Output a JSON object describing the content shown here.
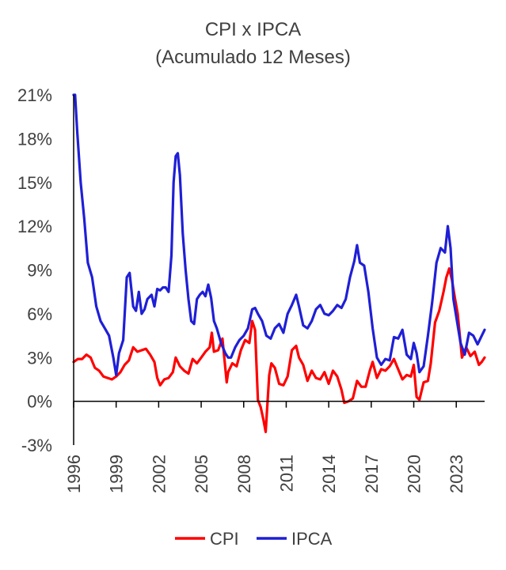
{
  "colors": {
    "cpi": "#ff0000",
    "ipca": "#1f1fd6",
    "axis": "#000000",
    "text": "#404040"
  },
  "chart_data": {
    "type": "line",
    "title": "CPI x IPCA",
    "subtitle": "(Acumulado 12 Meses)",
    "xlabel": "",
    "ylabel": "",
    "xlim": [
      1996,
      2025
    ],
    "ylim": [
      -3,
      21
    ],
    "y_ticks": [
      "-3%",
      "0%",
      "3%",
      "6%",
      "9%",
      "12%",
      "15%",
      "18%",
      "21%"
    ],
    "x_ticks": [
      "1996",
      "1999",
      "2002",
      "2005",
      "2008",
      "2011",
      "2014",
      "2017",
      "2020",
      "2023"
    ],
    "grid": false,
    "legend": "bottom",
    "series": [
      {
        "name": "CPI",
        "color": "#ff0000",
        "x": [
          1996.0,
          1996.3,
          1996.6,
          1996.9,
          1997.2,
          1997.5,
          1997.8,
          1998.1,
          1998.4,
          1998.7,
          1999.0,
          1999.3,
          1999.6,
          1999.9,
          2000.2,
          2000.5,
          2000.8,
          2001.1,
          2001.4,
          2001.7,
          2001.9,
          2002.1,
          2002.4,
          2002.7,
          2003.0,
          2003.2,
          2003.5,
          2003.8,
          2004.1,
          2004.4,
          2004.7,
          2005.0,
          2005.3,
          2005.6,
          2005.75,
          2005.9,
          2006.2,
          2006.5,
          2006.8,
          2006.9,
          2007.2,
          2007.5,
          2007.8,
          2008.1,
          2008.4,
          2008.6,
          2008.8,
          2009.0,
          2009.2,
          2009.4,
          2009.55,
          2009.8,
          2009.95,
          2010.2,
          2010.5,
          2010.8,
          2011.1,
          2011.4,
          2011.7,
          2011.9,
          2012.2,
          2012.5,
          2012.8,
          2013.1,
          2013.4,
          2013.7,
          2014.0,
          2014.3,
          2014.6,
          2014.9,
          2015.1,
          2015.4,
          2015.7,
          2016.0,
          2016.3,
          2016.6,
          2016.9,
          2017.1,
          2017.4,
          2017.7,
          2018.0,
          2018.3,
          2018.6,
          2018.9,
          2019.2,
          2019.5,
          2019.8,
          2020.0,
          2020.2,
          2020.4,
          2020.7,
          2021.0,
          2021.2,
          2021.5,
          2021.8,
          2022.1,
          2022.3,
          2022.5,
          2022.7,
          2022.9,
          2023.1,
          2023.4,
          2023.7,
          2024.0,
          2024.3,
          2024.6,
          2024.8,
          2025.0
        ],
        "values": [
          2.7,
          2.9,
          2.9,
          3.2,
          3.0,
          2.3,
          2.1,
          1.7,
          1.6,
          1.5,
          1.7,
          2.0,
          2.5,
          2.8,
          3.7,
          3.4,
          3.5,
          3.6,
          3.2,
          2.7,
          1.6,
          1.1,
          1.5,
          1.6,
          2.0,
          3.0,
          2.4,
          2.1,
          1.9,
          2.9,
          2.6,
          3.0,
          3.4,
          3.7,
          4.7,
          3.4,
          3.5,
          4.3,
          1.3,
          2.0,
          2.6,
          2.4,
          3.5,
          4.2,
          4.0,
          5.5,
          4.9,
          0.1,
          -0.4,
          -1.3,
          -2.1,
          1.8,
          2.6,
          2.3,
          1.2,
          1.1,
          1.7,
          3.5,
          3.8,
          3.0,
          2.5,
          1.4,
          2.1,
          1.6,
          1.5,
          2.0,
          1.2,
          2.1,
          1.7,
          0.8,
          -0.1,
          0.0,
          0.2,
          1.4,
          1.0,
          1.0,
          2.1,
          2.7,
          1.6,
          2.2,
          2.1,
          2.4,
          2.9,
          2.2,
          1.5,
          1.8,
          1.7,
          2.5,
          0.3,
          0.1,
          1.3,
          1.4,
          2.6,
          5.4,
          6.2,
          7.5,
          8.5,
          9.1,
          8.3,
          7.1,
          6.0,
          3.0,
          3.7,
          3.1,
          3.4,
          2.5,
          2.7,
          3.0
        ]
      },
      {
        "name": "IPCA",
        "color": "#1f1fd6",
        "x": [
          1996.0,
          1996.1,
          1996.25,
          1996.5,
          1996.75,
          1997.0,
          1997.3,
          1997.6,
          1997.9,
          1998.2,
          1998.5,
          1998.8,
          1999.0,
          1999.2,
          1999.5,
          1999.75,
          1999.95,
          2000.2,
          2000.4,
          2000.6,
          2000.8,
          2001.0,
          2001.2,
          2001.5,
          2001.7,
          2001.9,
          2002.1,
          2002.3,
          2002.5,
          2002.7,
          2002.9,
          2003.05,
          2003.2,
          2003.35,
          2003.5,
          2003.7,
          2003.9,
          2004.1,
          2004.3,
          2004.5,
          2004.7,
          2004.9,
          2005.1,
          2005.3,
          2005.5,
          2005.7,
          2005.9,
          2006.1,
          2006.4,
          2006.7,
          2006.9,
          2007.1,
          2007.4,
          2007.7,
          2008.0,
          2008.3,
          2008.6,
          2008.8,
          2009.0,
          2009.3,
          2009.6,
          2009.9,
          2010.2,
          2010.5,
          2010.8,
          2011.1,
          2011.4,
          2011.7,
          2011.9,
          2012.2,
          2012.5,
          2012.8,
          2013.1,
          2013.4,
          2013.7,
          2014.0,
          2014.3,
          2014.6,
          2014.9,
          2015.2,
          2015.5,
          2015.8,
          2016.0,
          2016.2,
          2016.5,
          2016.8,
          2017.1,
          2017.4,
          2017.7,
          2018.0,
          2018.3,
          2018.6,
          2018.9,
          2019.2,
          2019.5,
          2019.8,
          2020.0,
          2020.2,
          2020.4,
          2020.7,
          2021.0,
          2021.3,
          2021.6,
          2021.9,
          2022.2,
          2022.4,
          2022.6,
          2022.8,
          2023.0,
          2023.3,
          2023.6,
          2023.9,
          2024.2,
          2024.5,
          2024.8,
          2025.0
        ],
        "values": [
          21.0,
          21.0,
          18.5,
          15.0,
          12.5,
          9.5,
          8.5,
          6.5,
          5.5,
          5.0,
          4.5,
          3.0,
          1.8,
          3.3,
          4.2,
          8.5,
          8.8,
          6.5,
          6.2,
          7.5,
          6.0,
          6.3,
          7.0,
          7.3,
          6.5,
          7.7,
          7.6,
          7.8,
          7.8,
          7.5,
          10.0,
          15.0,
          16.8,
          17.0,
          15.5,
          11.5,
          9.0,
          7.0,
          5.5,
          5.3,
          7.0,
          7.3,
          7.5,
          7.2,
          8.0,
          7.1,
          5.5,
          5.0,
          4.0,
          3.3,
          3.0,
          3.0,
          3.7,
          4.2,
          4.5,
          5.0,
          6.3,
          6.4,
          6.0,
          5.5,
          4.5,
          4.3,
          5.0,
          5.3,
          4.7,
          6.0,
          6.6,
          7.3,
          6.5,
          5.2,
          5.0,
          5.5,
          6.3,
          6.6,
          6.0,
          5.9,
          6.2,
          6.6,
          6.4,
          7.0,
          8.5,
          9.6,
          10.7,
          9.5,
          9.3,
          7.5,
          5.0,
          3.0,
          2.5,
          2.9,
          2.8,
          4.4,
          4.3,
          4.9,
          3.2,
          2.9,
          4.0,
          3.3,
          2.0,
          2.4,
          4.5,
          6.8,
          9.5,
          10.5,
          10.2,
          12.0,
          10.5,
          7.0,
          5.8,
          4.0,
          3.2,
          4.7,
          4.5,
          3.9,
          4.5,
          4.9
        ]
      }
    ]
  }
}
